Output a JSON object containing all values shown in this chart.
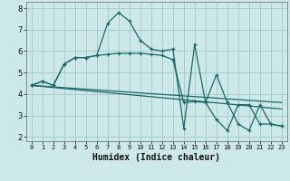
{
  "xlabel": "Humidex (Indice chaleur)",
  "background_color": "#cce8e8",
  "grid_color": "#aacccc",
  "line_color": "#1a6868",
  "xlim": [
    -0.5,
    23.5
  ],
  "ylim": [
    1.8,
    8.3
  ],
  "yticks": [
    2,
    3,
    4,
    5,
    6,
    7,
    8
  ],
  "xticks": [
    0,
    1,
    2,
    3,
    4,
    5,
    6,
    7,
    8,
    9,
    10,
    11,
    12,
    13,
    14,
    15,
    16,
    17,
    18,
    19,
    20,
    21,
    22,
    23
  ],
  "series": [
    {
      "x": [
        0,
        1,
        2,
        3,
        4,
        5,
        6,
        7,
        8,
        9,
        10,
        11,
        12,
        13,
        14,
        15,
        16,
        17,
        18,
        19,
        20,
        21,
        22,
        23
      ],
      "y": [
        4.4,
        4.6,
        4.4,
        5.4,
        5.7,
        5.7,
        5.8,
        7.3,
        7.8,
        7.4,
        6.5,
        6.1,
        6.0,
        6.1,
        2.4,
        6.3,
        3.6,
        4.9,
        3.6,
        2.6,
        2.3,
        3.5,
        2.6,
        2.5
      ],
      "marker": true
    },
    {
      "x": [
        0,
        1,
        2,
        3,
        4,
        5,
        6,
        7,
        8,
        9,
        10,
        11,
        12,
        13,
        14,
        15,
        16,
        17,
        18,
        19,
        20,
        21,
        22,
        23
      ],
      "y": [
        4.4,
        4.6,
        4.4,
        5.4,
        5.7,
        5.7,
        5.8,
        5.85,
        5.9,
        5.9,
        5.9,
        5.85,
        5.8,
        5.6,
        3.6,
        3.65,
        3.6,
        2.8,
        2.3,
        3.5,
        3.5,
        2.6,
        2.6,
        2.5
      ],
      "marker": true
    },
    {
      "x": [
        0,
        23
      ],
      "y": [
        4.4,
        3.6
      ],
      "marker": false
    },
    {
      "x": [
        0,
        23
      ],
      "y": [
        4.4,
        3.3
      ],
      "marker": false
    }
  ]
}
